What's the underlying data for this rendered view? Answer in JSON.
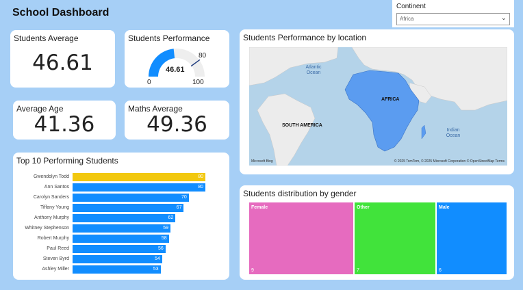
{
  "header": {
    "title": "School Dashboard"
  },
  "slicer": {
    "label": "Continent",
    "value": "Africa"
  },
  "cards": {
    "students_average": {
      "title": "Students Average",
      "value": "46.61"
    },
    "average_age": {
      "title": "Average Age",
      "value": "41.36"
    },
    "maths_average": {
      "title": "Maths Average",
      "value": "49.36"
    }
  },
  "gauge": {
    "title": "Students Performance",
    "value": "46.61",
    "target": "80",
    "min": "0",
    "max": "100",
    "value_num": 46.61,
    "max_num": 100,
    "target_num": 80,
    "color": "#118dff"
  },
  "top_students": {
    "title": "Top 10 Performing Students",
    "bar_color": "#118dff",
    "highlight_color": "#f2c80f"
  },
  "chart_data": {
    "type": "bar",
    "orientation": "horizontal",
    "title": "Top 10 Performing Students",
    "categories": [
      "Gwendolyn Todd",
      "Ann Santos",
      "Carolyn Sanders",
      "Tiffany Young",
      "Anthony Murphy",
      "Whitney Stephenson",
      "Robert Murphy",
      "Paul Reed",
      "Steven Byrd",
      "Ashley Miller"
    ],
    "values": [
      80,
      80,
      70,
      67,
      62,
      59,
      58,
      56,
      54,
      53
    ],
    "xlim": [
      0,
      80
    ]
  },
  "map": {
    "title": "Students Performance by location",
    "labels": {
      "atlantic": "Atlantic Ocean",
      "africa": "AFRICA",
      "south_america": "SOUTH AMERICA",
      "indian": "Indian Ocean"
    },
    "ms_logo": "Microsoft Bing",
    "attribution": "© 2025 TomTom, © 2025 Microsoft Corporation © OpenStreetMap Terms",
    "highlight_color": "#5b9cf0"
  },
  "gender": {
    "title": "Students distribution by gender",
    "items": [
      {
        "label": "Female",
        "value": "9",
        "color": "#e66bbf"
      },
      {
        "label": "Other",
        "value": "7",
        "color": "#41e33b"
      },
      {
        "label": "Male",
        "value": "6",
        "color": "#118dff"
      }
    ]
  }
}
